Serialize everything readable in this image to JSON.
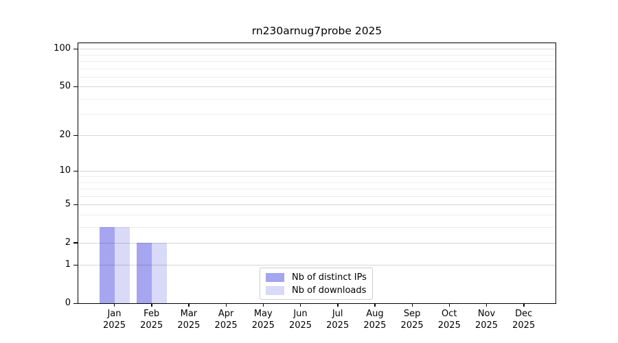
{
  "chart_data": {
    "type": "bar",
    "title": "rn230arnug7probe 2025",
    "categories": [
      "Jan",
      "Feb",
      "Mar",
      "Apr",
      "May",
      "Jun",
      "Jul",
      "Aug",
      "Sep",
      "Oct",
      "Nov",
      "Dec"
    ],
    "category_year": "2025",
    "series": [
      {
        "name": "Nb of distinct IPs",
        "color": "#a5a5f0",
        "values": [
          3,
          2,
          0,
          0,
          0,
          0,
          0,
          0,
          0,
          0,
          0,
          0
        ]
      },
      {
        "name": "Nb of downloads",
        "color": "#d9d9f8",
        "values": [
          3,
          2,
          0,
          0,
          0,
          0,
          0,
          0,
          0,
          0,
          0,
          0
        ]
      }
    ],
    "y_axis": {
      "scale": "log10(1+v)",
      "ticks": [
        0,
        1,
        2,
        5,
        10,
        20,
        50,
        100
      ],
      "minor_ticks": [
        3,
        4,
        6,
        7,
        8,
        9,
        30,
        40,
        60,
        70,
        80,
        90
      ],
      "max": 111
    },
    "xlabel": "",
    "ylabel": "",
    "grid": true,
    "legend_position": "bottom-center"
  },
  "colors": {
    "background": "#ffffff",
    "axis": "#000000",
    "grid_major": "#d8d8d8",
    "grid_minor": "#ececec",
    "legend_border": "#cccccc",
    "bar_distinct_ips": "#a5a5f0",
    "bar_downloads": "#d9d9f8"
  }
}
